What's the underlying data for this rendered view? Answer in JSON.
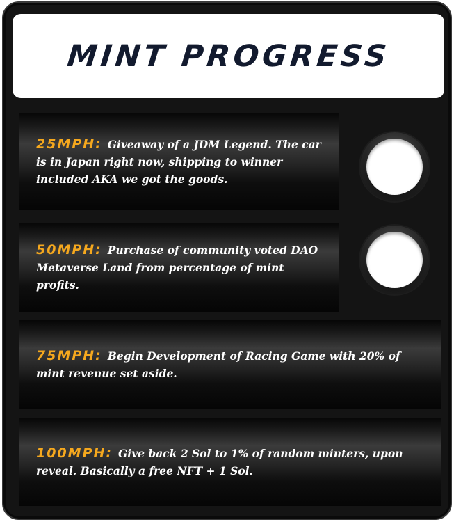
{
  "header": {
    "title": "MINT PROGRESS"
  },
  "milestones": [
    {
      "speed": "25MPH:",
      "description": "Giveaway of a JDM Legend. The car is in Japan right now, shipping to winner included AKA we got the goods."
    },
    {
      "speed": "50MPH:",
      "description": "Purchase of community voted DAO Metaverse Land from percentage of mint profits."
    },
    {
      "speed": "75MPH:",
      "description": "Begin Development of Racing Game with 20% of mint revenue set aside."
    },
    {
      "speed": "100MPH:",
      "description": "Give back 2 Sol to 1% of random minters, upon reveal. Basically a free NFT + 1 Sol."
    }
  ],
  "colors": {
    "speed_accent": "#f5a81e",
    "title_text": "#121a2e",
    "card_background": "#141414",
    "indicator_fill": "#ffffff"
  }
}
